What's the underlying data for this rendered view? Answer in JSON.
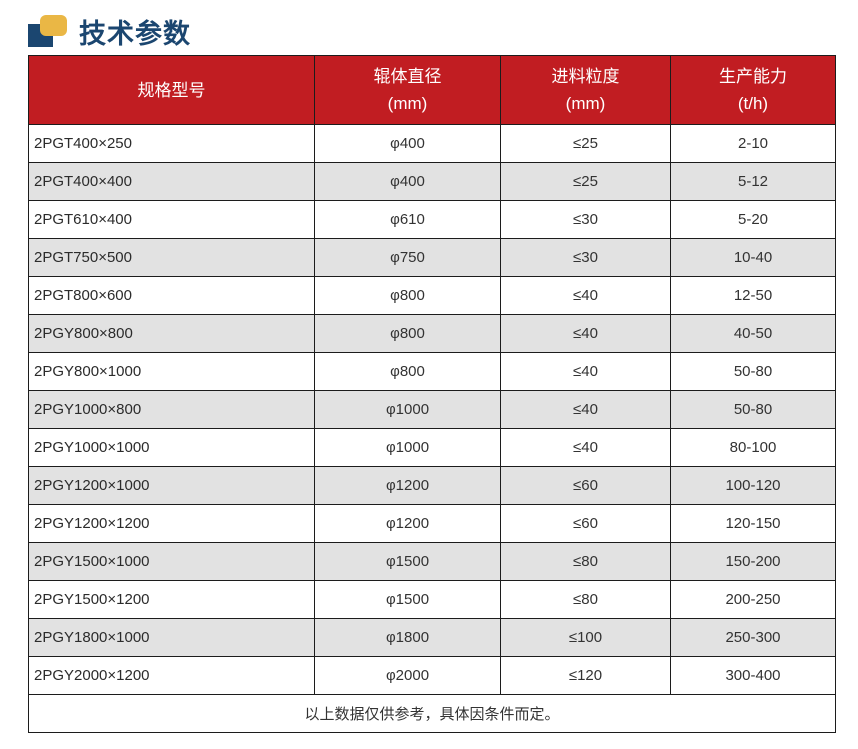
{
  "page": {
    "title": "技术参数"
  },
  "colors": {
    "header_red": "#c11d22",
    "title_navy": "#1b4670",
    "icon_gold": "#eab745",
    "row_alt_gray": "#e2e2e2",
    "border": "#1c1c1c"
  },
  "icons": {
    "title_icon": "overlapping-squares-icon"
  },
  "table": {
    "columns": [
      {
        "line1": "规格型号",
        "line2": ""
      },
      {
        "line1": "辊体直径",
        "line2": "(mm)"
      },
      {
        "line1": "进料粒度",
        "line2": "(mm)"
      },
      {
        "line1": "生产能力",
        "line2": "(t/h)"
      }
    ],
    "rows": [
      {
        "model": "2PGT400×250",
        "diameter": "φ400",
        "feed": "≤25",
        "capacity": "2-10"
      },
      {
        "model": "2PGT400×400",
        "diameter": "φ400",
        "feed": "≤25",
        "capacity": "5-12"
      },
      {
        "model": "2PGT610×400",
        "diameter": "φ610",
        "feed": "≤30",
        "capacity": "5-20"
      },
      {
        "model": "2PGT750×500",
        "diameter": "φ750",
        "feed": "≤30",
        "capacity": "10-40"
      },
      {
        "model": "2PGT800×600",
        "diameter": "φ800",
        "feed": "≤40",
        "capacity": "12-50"
      },
      {
        "model": "2PGY800×800",
        "diameter": "φ800",
        "feed": "≤40",
        "capacity": "40-50"
      },
      {
        "model": "2PGY800×1000",
        "diameter": "φ800",
        "feed": "≤40",
        "capacity": "50-80"
      },
      {
        "model": "2PGY1000×800",
        "diameter": "φ1000",
        "feed": "≤40",
        "capacity": "50-80"
      },
      {
        "model": "2PGY1000×1000",
        "diameter": "φ1000",
        "feed": "≤40",
        "capacity": "80-100"
      },
      {
        "model": "2PGY1200×1000",
        "diameter": "φ1200",
        "feed": "≤60",
        "capacity": "100-120"
      },
      {
        "model": "2PGY1200×1200",
        "diameter": "φ1200",
        "feed": "≤60",
        "capacity": "120-150"
      },
      {
        "model": "2PGY1500×1000",
        "diameter": "φ1500",
        "feed": "≤80",
        "capacity": "150-200"
      },
      {
        "model": "2PGY1500×1200",
        "diameter": "φ1500",
        "feed": "≤80",
        "capacity": "200-250"
      },
      {
        "model": "2PGY1800×1000",
        "diameter": "φ1800",
        "feed": "≤100",
        "capacity": "250-300"
      },
      {
        "model": "2PGY2000×1200",
        "diameter": "φ2000",
        "feed": "≤120",
        "capacity": "300-400"
      }
    ],
    "footnote": "以上数据仅供参考，具体因条件而定。"
  }
}
